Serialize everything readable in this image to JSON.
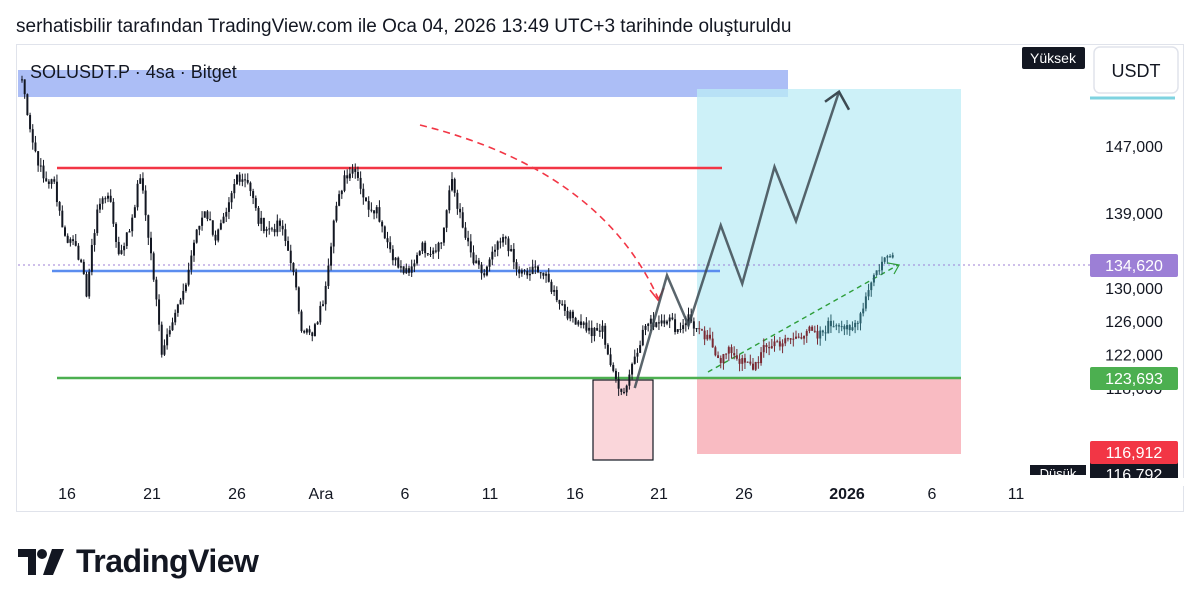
{
  "header": {
    "caption": "serhatisbilir tarafından TradingView.com ile Oca 04, 2026 13:49 UTC+3 tarihinde oluşturuldu"
  },
  "symbol_label": "SOLUSDT.P · 4sa · Bitget",
  "currency_button": "USDT",
  "high_tag": "Yüksek",
  "low_tag": "Düşük",
  "brand": {
    "name": "TradingView",
    "logo_icon": "tradingview-logo-icon"
  },
  "colors": {
    "candle": "#131722",
    "resistance": "#f23645",
    "support": "#4caf50",
    "mid_line": "#5b8def",
    "supply_zone": "#9db3f5",
    "target_zone": "#bcecf5",
    "stop_zone": "#f8b4bb",
    "last_price_tag": "#9c7fd6",
    "entry_tag": "#4caf50",
    "stop_tag": "#f23645"
  },
  "chart_data": {
    "type": "candlestick",
    "title": "SOLUSDT.P · 4sa · Bitget",
    "ylim": [
      114500,
      156000
    ],
    "x_ticks": [
      "16",
      "21",
      "26",
      "Ara",
      "6",
      "11",
      "16",
      "21",
      "26",
      "2026",
      "6",
      "11"
    ],
    "y_ticks": [
      "147,000",
      "139,000",
      "130,000",
      "126,000",
      "122,000",
      "118,000"
    ],
    "price_tags": [
      {
        "label": "134,620",
        "value": 134620,
        "role": "last"
      },
      {
        "label": "123,693",
        "value": 123693,
        "role": "entry"
      },
      {
        "label": "116,912",
        "value": 116912,
        "role": "stop"
      },
      {
        "label": "116,792",
        "value": 116792,
        "role": "low"
      }
    ],
    "levels": {
      "resistance": 144800,
      "mid": 133800,
      "support": 123693,
      "supply_zone": [
        152100,
        154800
      ]
    },
    "position": {
      "entry": 123693,
      "stop": 116912,
      "target": 151900
    },
    "path": [
      {
        "x": 0,
        "v": 155000
      },
      {
        "x": 1,
        "v": 147500
      },
      {
        "x": 2,
        "v": 143000
      },
      {
        "x": 3,
        "v": 142500
      },
      {
        "x": 4,
        "v": 136000
      },
      {
        "x": 5,
        "v": 135500
      },
      {
        "x": 6,
        "v": 129500
      },
      {
        "x": 7,
        "v": 139500
      },
      {
        "x": 8,
        "v": 141500
      },
      {
        "x": 9,
        "v": 134000
      },
      {
        "x": 10,
        "v": 137000
      },
      {
        "x": 11,
        "v": 143500
      },
      {
        "x": 12,
        "v": 134000
      },
      {
        "x": 13,
        "v": 122500
      },
      {
        "x": 14,
        "v": 126500
      },
      {
        "x": 15,
        "v": 129000
      },
      {
        "x": 16,
        "v": 135500
      },
      {
        "x": 17,
        "v": 139500
      },
      {
        "x": 18,
        "v": 136000
      },
      {
        "x": 19,
        "v": 138500
      },
      {
        "x": 20,
        "v": 143500
      },
      {
        "x": 21,
        "v": 143000
      },
      {
        "x": 22,
        "v": 138000
      },
      {
        "x": 23,
        "v": 137000
      },
      {
        "x": 24,
        "v": 137500
      },
      {
        "x": 25,
        "v": 133500
      },
      {
        "x": 26,
        "v": 125500
      },
      {
        "x": 27,
        "v": 124000
      },
      {
        "x": 28,
        "v": 128500
      },
      {
        "x": 29,
        "v": 138000
      },
      {
        "x": 30,
        "v": 143500
      },
      {
        "x": 31,
        "v": 144500
      },
      {
        "x": 32,
        "v": 140000
      },
      {
        "x": 33,
        "v": 139500
      },
      {
        "x": 34,
        "v": 135500
      },
      {
        "x": 35,
        "v": 132500
      },
      {
        "x": 36,
        "v": 131500
      },
      {
        "x": 37,
        "v": 135000
      },
      {
        "x": 38,
        "v": 134500
      },
      {
        "x": 39,
        "v": 135500
      },
      {
        "x": 40,
        "v": 143000
      },
      {
        "x": 41,
        "v": 137000
      },
      {
        "x": 42,
        "v": 133000
      },
      {
        "x": 43,
        "v": 131500
      },
      {
        "x": 44,
        "v": 134500
      },
      {
        "x": 45,
        "v": 136000
      },
      {
        "x": 46,
        "v": 132000
      },
      {
        "x": 47,
        "v": 131500
      },
      {
        "x": 48,
        "v": 132500
      },
      {
        "x": 49,
        "v": 130500
      },
      {
        "x": 50,
        "v": 128500
      },
      {
        "x": 51,
        "v": 126500
      },
      {
        "x": 52,
        "v": 126000
      },
      {
        "x": 53,
        "v": 124500
      },
      {
        "x": 54,
        "v": 125000
      },
      {
        "x": 55,
        "v": 119500
      },
      {
        "x": 56,
        "v": 117500
      },
      {
        "x": 57,
        "v": 122000
      },
      {
        "x": 58,
        "v": 125500
      },
      {
        "x": 59,
        "v": 126000
      },
      {
        "x": 60,
        "v": 126500
      },
      {
        "x": 61,
        "v": 125000
      },
      {
        "x": 62,
        "v": 126500
      },
      {
        "x": 63,
        "v": 124500
      },
      {
        "x": 64,
        "v": 123500
      },
      {
        "x": 65,
        "v": 121500
      },
      {
        "x": 66,
        "v": 122500
      },
      {
        "x": 67,
        "v": 121000
      },
      {
        "x": 68,
        "v": 120500
      },
      {
        "x": 69,
        "v": 122500
      },
      {
        "x": 70,
        "v": 123500
      },
      {
        "x": 71,
        "v": 123500
      },
      {
        "x": 72,
        "v": 124000
      },
      {
        "x": 73,
        "v": 125000
      },
      {
        "x": 74,
        "v": 124000
      },
      {
        "x": 75,
        "v": 125500
      },
      {
        "x": 76,
        "v": 126000
      },
      {
        "x": 77,
        "v": 124500
      },
      {
        "x": 78,
        "v": 127000
      },
      {
        "x": 79,
        "v": 131000
      },
      {
        "x": 80,
        "v": 133000
      },
      {
        "x": 81,
        "v": 134620
      }
    ],
    "projection": [
      {
        "x": 57,
        "v": 118000
      },
      {
        "x": 60,
        "v": 131500
      },
      {
        "x": 62,
        "v": 125500
      },
      {
        "x": 65,
        "v": 137500
      },
      {
        "x": 67,
        "v": 130500
      },
      {
        "x": 70,
        "v": 144500
      },
      {
        "x": 72,
        "v": 138000
      },
      {
        "x": 76,
        "v": 153500
      },
      {
        "x": 77.5,
        "v": 151500
      }
    ],
    "curved_arrow_note": "dashed red arrow from resistance toward support",
    "trend_note": "dashed green line from entry to last price"
  }
}
